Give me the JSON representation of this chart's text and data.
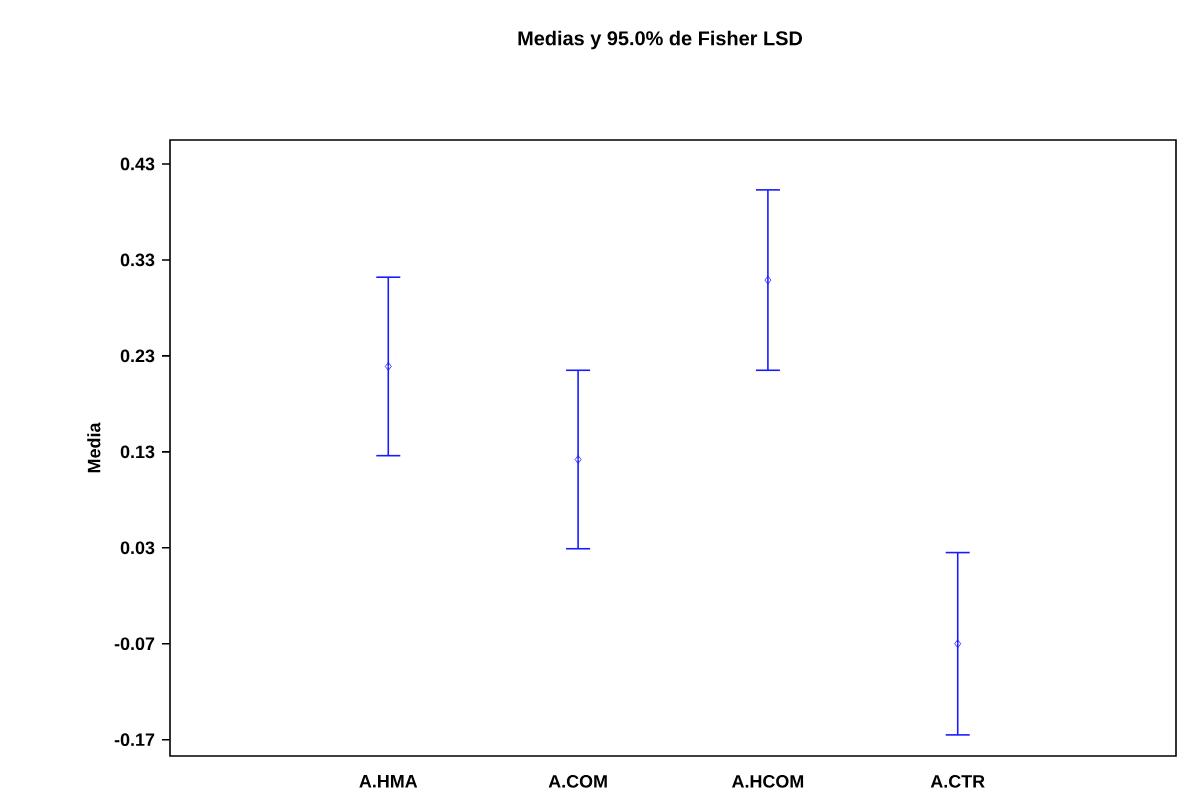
{
  "chart_data": {
    "type": "scatter",
    "title": "Medias y 95.0% de Fisher LSD",
    "ylabel": "Media",
    "categories": [
      "A.HMA",
      "A.COM",
      "A.HCOM",
      "A.CTR"
    ],
    "series": [
      {
        "color": "#1a1aff",
        "values": [
          0.219,
          0.122,
          0.309,
          -0.07
        ],
        "errors": [
          0.093,
          0.093,
          0.094,
          0.095
        ]
      }
    ],
    "ylim": [
      -0.187,
      0.455
    ],
    "yticks": [
      -0.17,
      -0.07,
      0.03,
      0.13,
      0.23,
      0.33,
      0.43
    ],
    "marker": "diamond",
    "grid": false
  }
}
